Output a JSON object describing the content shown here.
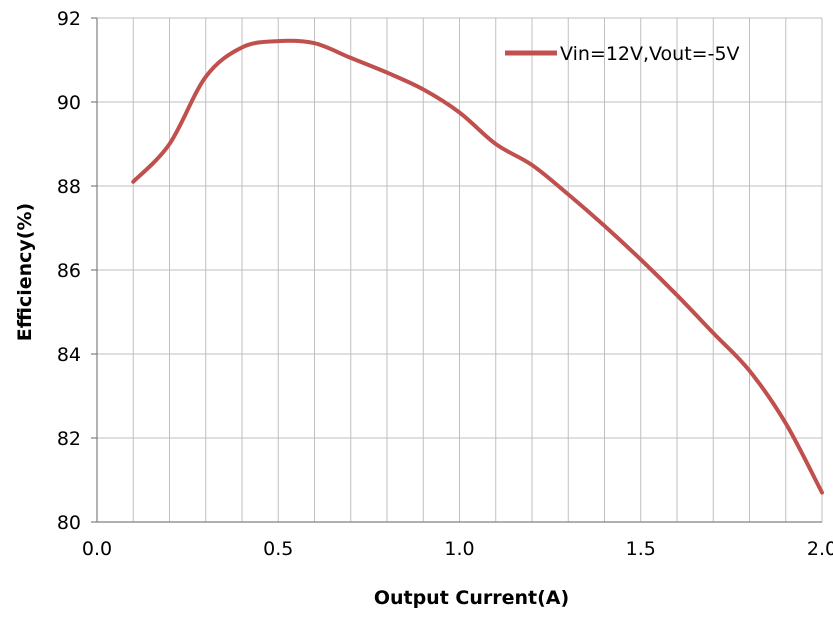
{
  "chart_data": {
    "type": "line",
    "title": "",
    "xlabel": "Output Current(A)",
    "ylabel": "Efficiency(%)",
    "xlim": [
      0.0,
      2.0
    ],
    "ylim": [
      80,
      92
    ],
    "x_ticks": [
      "0.0",
      "0.5",
      "1.0",
      "1.5",
      "2.0"
    ],
    "y_ticks": [
      "80",
      "82",
      "84",
      "86",
      "88",
      "90",
      "92"
    ],
    "x_minor_step": 0.1,
    "grid": true,
    "legend_position": "top-right",
    "series": [
      {
        "name": "Vin=12V,Vout=-5V",
        "color": "#c0504d",
        "x": [
          0.1,
          0.2,
          0.3,
          0.4,
          0.5,
          0.6,
          0.7,
          0.8,
          0.9,
          1.0,
          1.1,
          1.2,
          1.3,
          1.4,
          1.5,
          1.6,
          1.7,
          1.8,
          1.9,
          2.0
        ],
        "y": [
          88.1,
          89.0,
          90.6,
          91.3,
          91.45,
          91.4,
          91.05,
          90.7,
          90.3,
          89.75,
          89.0,
          88.5,
          87.8,
          87.05,
          86.25,
          85.4,
          84.5,
          83.6,
          82.35,
          80.7
        ]
      }
    ]
  }
}
